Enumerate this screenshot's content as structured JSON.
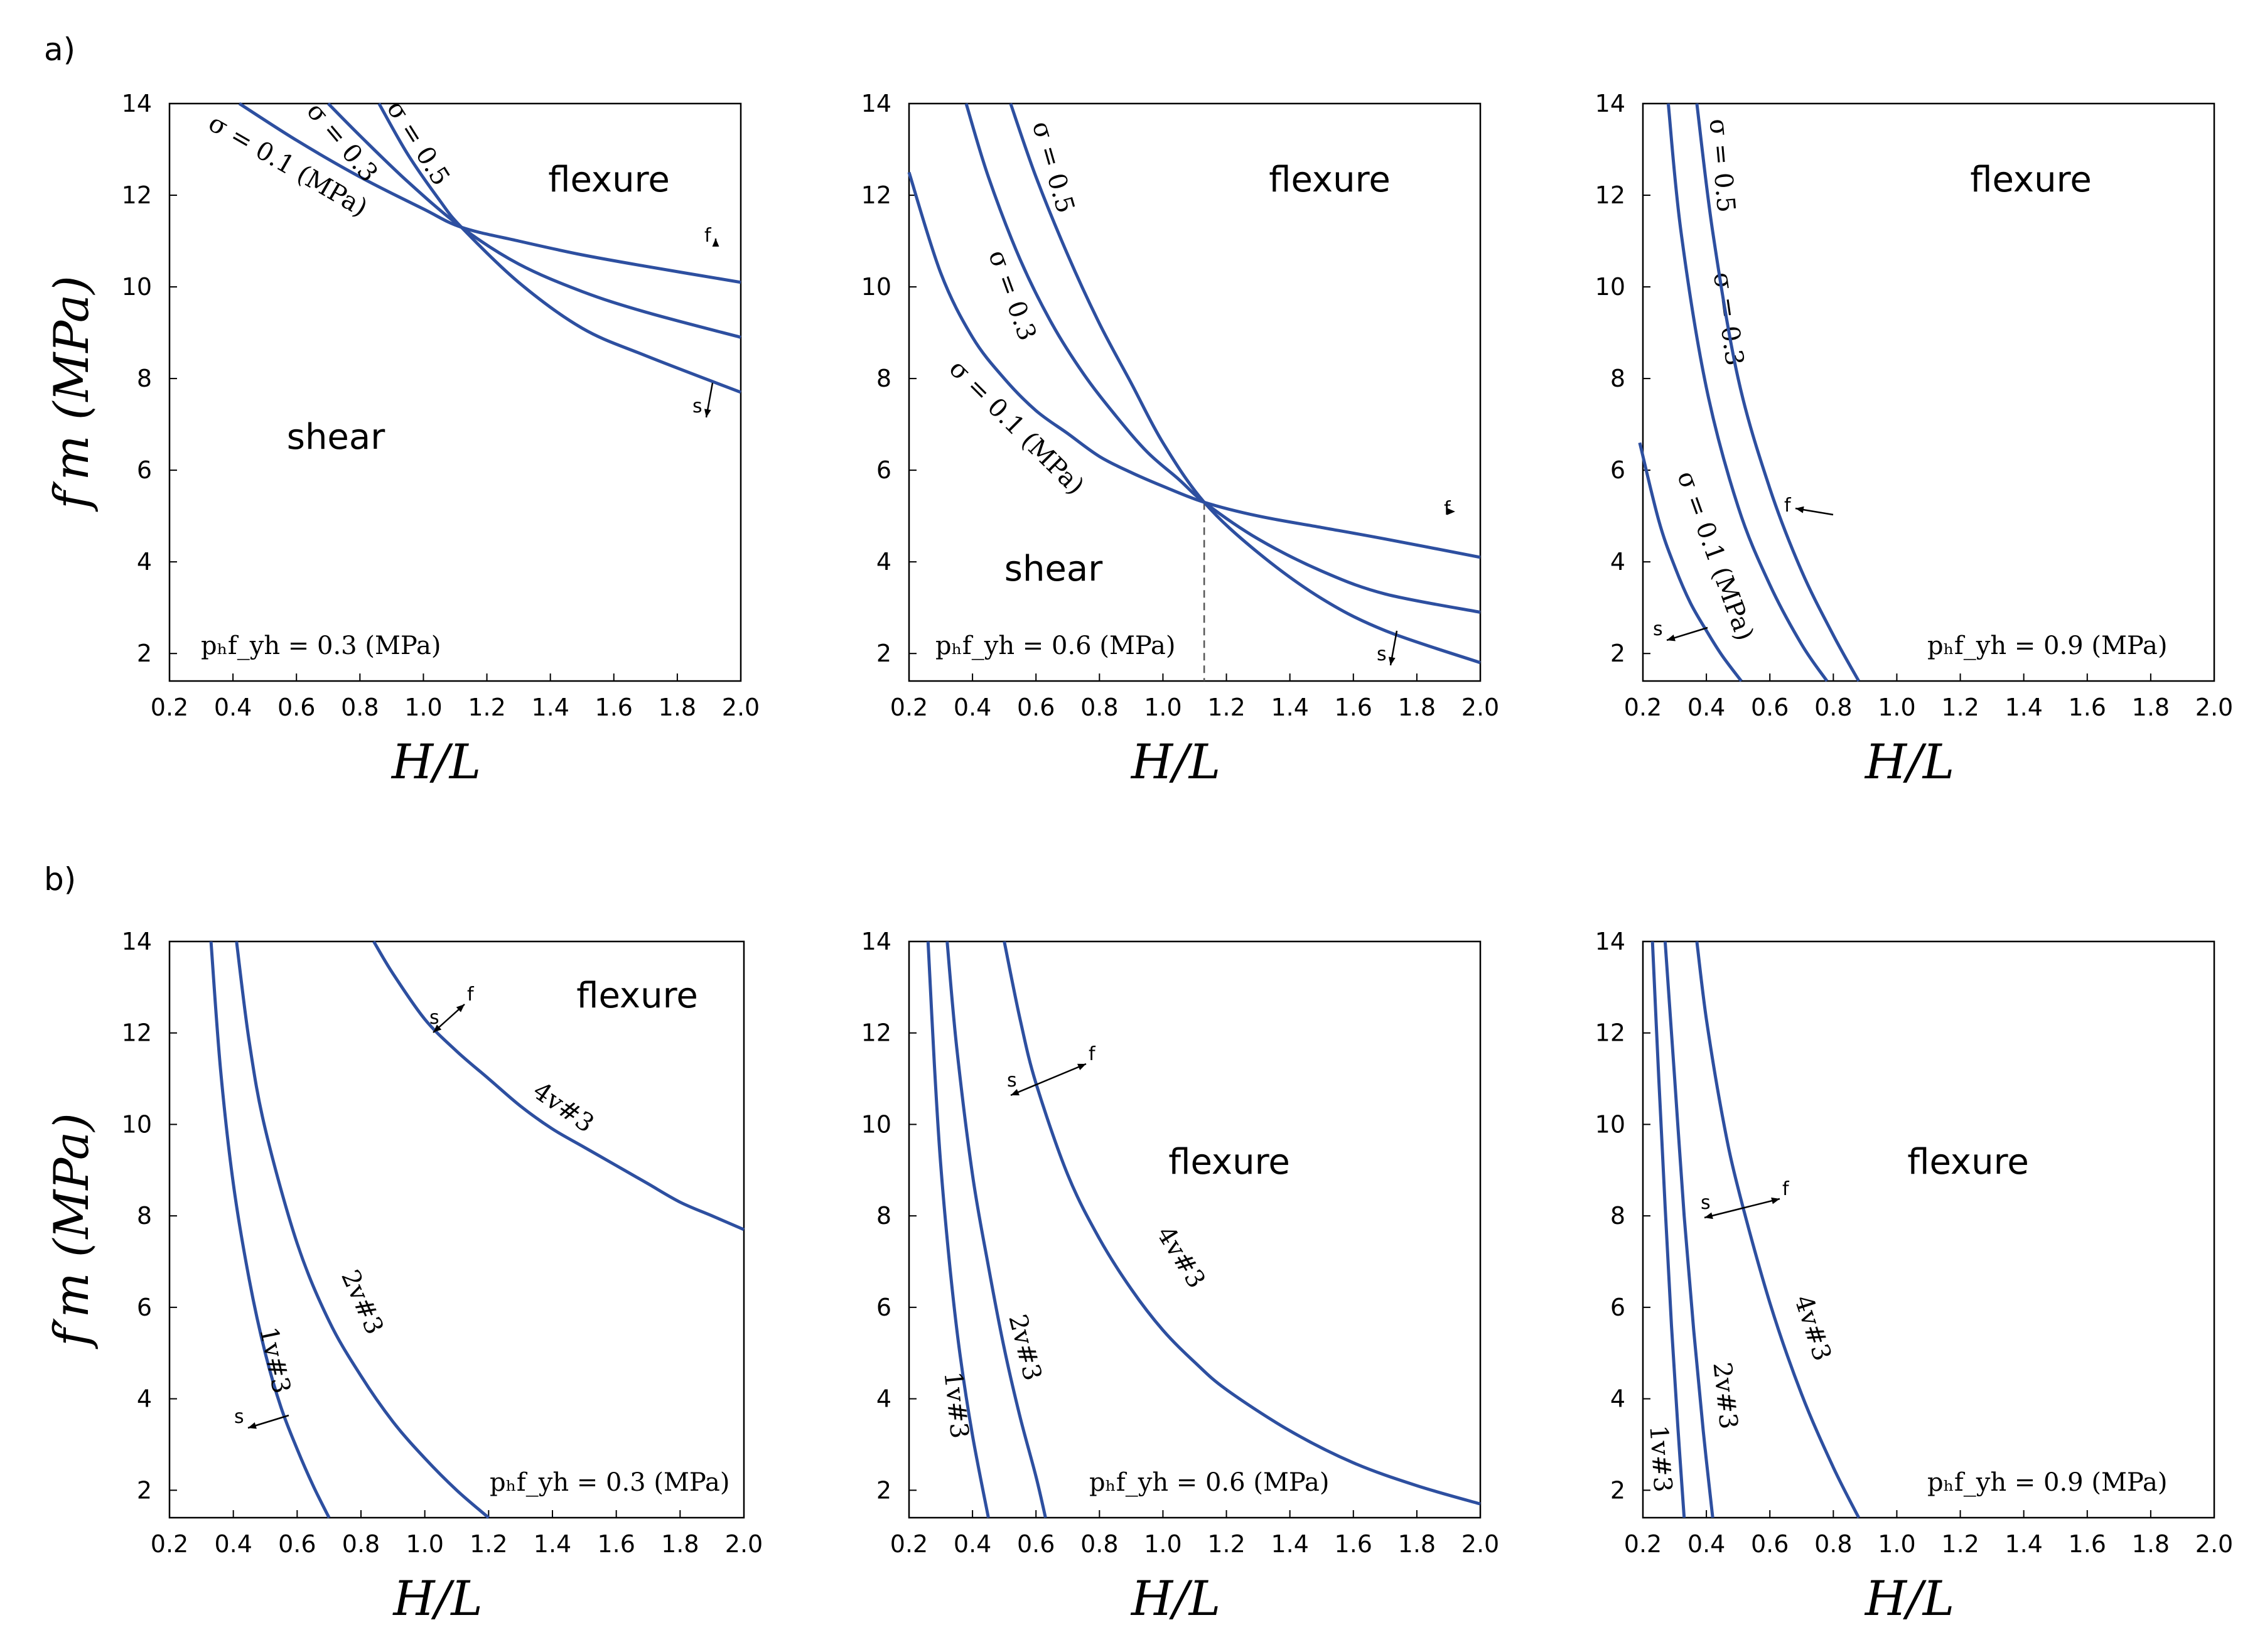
{
  "colors": {
    "curve": "#2d4fa0",
    "axis": "#000000",
    "guide": "#555555"
  },
  "axes": {
    "xlabel": "H/L",
    "ylabel": "f′m (MPa)",
    "xlim": [
      0.2,
      2.0
    ],
    "ylim": [
      1.4,
      14
    ],
    "xticks": [
      "0.2",
      "0.4",
      "0.6",
      "0.8",
      "1.0",
      "1.2",
      "1.4",
      "1.6",
      "1.8",
      "2.0"
    ],
    "yticks": [
      "2",
      "4",
      "6",
      "8",
      "10",
      "12",
      "14"
    ]
  },
  "rows": {
    "a": "a)",
    "b": "b)"
  },
  "chart_data": [
    {
      "id": "a1",
      "type": "line",
      "annotation": "pₕf_yh = 0.3 (MPa)",
      "regions": [
        "flexure",
        "shear"
      ],
      "arrows": [
        "f",
        "s"
      ],
      "series": [
        {
          "name": "σ = 0.1 (MPa)",
          "x": [
            0.42,
            0.6,
            0.8,
            1.0,
            1.12,
            1.3,
            1.5,
            1.7,
            2.0
          ],
          "y": [
            14,
            13.2,
            12.4,
            11.7,
            11.3,
            11.0,
            10.7,
            10.45,
            10.1
          ]
        },
        {
          "name": "σ = 0.3",
          "x": [
            0.7,
            0.8,
            0.95,
            1.12,
            1.3,
            1.5,
            1.7,
            2.0
          ],
          "y": [
            14,
            13.3,
            12.3,
            11.3,
            10.5,
            9.9,
            9.45,
            8.9
          ]
        },
        {
          "name": "σ = 0.5",
          "x": [
            0.86,
            0.95,
            1.05,
            1.12,
            1.3,
            1.5,
            1.7,
            2.0
          ],
          "y": [
            14,
            12.9,
            11.9,
            11.3,
            10.1,
            9.1,
            8.5,
            7.7
          ]
        }
      ]
    },
    {
      "id": "a2",
      "type": "line",
      "annotation": "pₕf_yh = 0.6 (MPa)",
      "regions": [
        "flexure",
        "shear"
      ],
      "arrows": [
        "f",
        "s"
      ],
      "guide_x": 1.13,
      "series": [
        {
          "name": "σ = 0.1 (MPa)",
          "x": [
            0.2,
            0.3,
            0.4,
            0.5,
            0.6,
            0.7,
            0.8,
            0.9,
            1.0,
            1.13,
            1.3,
            1.5,
            1.7,
            2.0
          ],
          "y": [
            12.5,
            10.3,
            8.9,
            8.0,
            7.3,
            6.8,
            6.3,
            5.95,
            5.65,
            5.3,
            5.0,
            4.75,
            4.5,
            4.1
          ]
        },
        {
          "name": "σ = 0.3",
          "x": [
            0.38,
            0.45,
            0.55,
            0.65,
            0.75,
            0.85,
            0.95,
            1.05,
            1.13,
            1.3,
            1.5,
            1.7,
            2.0
          ],
          "y": [
            14,
            12.4,
            10.6,
            9.2,
            8.1,
            7.2,
            6.4,
            5.8,
            5.3,
            4.5,
            3.8,
            3.3,
            2.9
          ]
        },
        {
          "name": "σ = 0.5",
          "x": [
            0.52,
            0.6,
            0.7,
            0.8,
            0.9,
            1.0,
            1.13,
            1.3,
            1.5,
            1.7,
            2.0
          ],
          "y": [
            14,
            12.4,
            10.7,
            9.2,
            7.9,
            6.6,
            5.3,
            4.2,
            3.2,
            2.5,
            1.8
          ]
        }
      ]
    },
    {
      "id": "a3",
      "type": "line",
      "annotation": "pₕf_yh = 0.9 (MPa)",
      "regions": [
        "flexure"
      ],
      "arrows": [
        "f",
        "s"
      ],
      "series": [
        {
          "name": "σ = 0.1 (MPa)",
          "x": [
            0.19,
            0.25,
            0.3,
            0.35,
            0.4,
            0.45,
            0.51
          ],
          "y": [
            6.6,
            4.9,
            3.9,
            3.1,
            2.5,
            1.95,
            1.4
          ]
        },
        {
          "name": "σ = 0.3",
          "x": [
            0.28,
            0.32,
            0.4,
            0.5,
            0.6,
            0.7,
            0.78
          ],
          "y": [
            14,
            11.2,
            7.8,
            5.2,
            3.5,
            2.2,
            1.4
          ]
        },
        {
          "name": "σ = 0.5",
          "x": [
            0.37,
            0.42,
            0.5,
            0.6,
            0.7,
            0.8,
            0.88
          ],
          "y": [
            14,
            11.2,
            8.0,
            5.6,
            3.8,
            2.4,
            1.4
          ]
        }
      ]
    },
    {
      "id": "b1",
      "type": "line",
      "annotation": "pₕf_yh = 0.3 (MPa)",
      "regions": [
        "flexure"
      ],
      "arrows": [
        "f",
        "s"
      ],
      "series": [
        {
          "name": "1v#3",
          "x": [
            0.33,
            0.36,
            0.4,
            0.45,
            0.5,
            0.55,
            0.6,
            0.65,
            0.7
          ],
          "y": [
            14,
            11.2,
            8.7,
            6.6,
            5.0,
            3.8,
            2.9,
            2.1,
            1.4
          ]
        },
        {
          "name": "2v#3",
          "x": [
            0.41,
            0.45,
            0.5,
            0.6,
            0.7,
            0.8,
            0.9,
            1.0,
            1.1,
            1.2
          ],
          "y": [
            14,
            11.8,
            9.9,
            7.4,
            5.7,
            4.5,
            3.5,
            2.7,
            2.0,
            1.4
          ]
        },
        {
          "name": "4v#3",
          "x": [
            0.84,
            0.9,
            1.0,
            1.1,
            1.2,
            1.3,
            1.4,
            1.5,
            1.6,
            1.7,
            1.8,
            1.9,
            2.0
          ],
          "y": [
            14,
            13.3,
            12.3,
            11.6,
            11.0,
            10.4,
            9.9,
            9.5,
            9.1,
            8.7,
            8.3,
            8.0,
            7.7
          ]
        }
      ]
    },
    {
      "id": "b2",
      "type": "line",
      "annotation": "pₕf_yh = 0.6 (MPa)",
      "regions": [
        "flexure"
      ],
      "arrows": [
        "f",
        "s"
      ],
      "series": [
        {
          "name": "1v#3",
          "x": [
            0.26,
            0.28,
            0.3,
            0.33,
            0.36,
            0.4,
            0.45
          ],
          "y": [
            14,
            11.3,
            9.1,
            6.8,
            5.0,
            3.2,
            1.4
          ]
        },
        {
          "name": "2v#3",
          "x": [
            0.32,
            0.35,
            0.4,
            0.45,
            0.5,
            0.55,
            0.6,
            0.63
          ],
          "y": [
            14,
            11.7,
            8.9,
            6.9,
            5.1,
            3.6,
            2.3,
            1.4
          ]
        },
        {
          "name": "4v#3",
          "x": [
            0.5,
            0.55,
            0.6,
            0.7,
            0.8,
            0.9,
            1.0,
            1.1,
            1.2,
            1.4,
            1.6,
            1.8,
            2.0
          ],
          "y": [
            14,
            12.3,
            10.9,
            8.9,
            7.5,
            6.4,
            5.5,
            4.8,
            4.2,
            3.3,
            2.6,
            2.1,
            1.7
          ]
        }
      ]
    },
    {
      "id": "b3",
      "type": "line",
      "annotation": "pₕf_yh = 0.9 (MPa)",
      "regions": [
        "flexure"
      ],
      "arrows": [
        "f",
        "s"
      ],
      "series": [
        {
          "name": "1v#3",
          "x": [
            0.23,
            0.25,
            0.27,
            0.29,
            0.31,
            0.33
          ],
          "y": [
            14,
            11.0,
            8.2,
            5.6,
            3.4,
            1.4
          ]
        },
        {
          "name": "2v#3",
          "x": [
            0.27,
            0.3,
            0.33,
            0.36,
            0.39,
            0.42
          ],
          "y": [
            14,
            11.0,
            8.0,
            5.5,
            3.3,
            1.4
          ]
        },
        {
          "name": "4v#3",
          "x": [
            0.37,
            0.4,
            0.45,
            0.5,
            0.6,
            0.7,
            0.8,
            0.88
          ],
          "y": [
            14,
            12.3,
            10.2,
            8.6,
            6.1,
            4.1,
            2.5,
            1.4
          ]
        }
      ]
    }
  ]
}
